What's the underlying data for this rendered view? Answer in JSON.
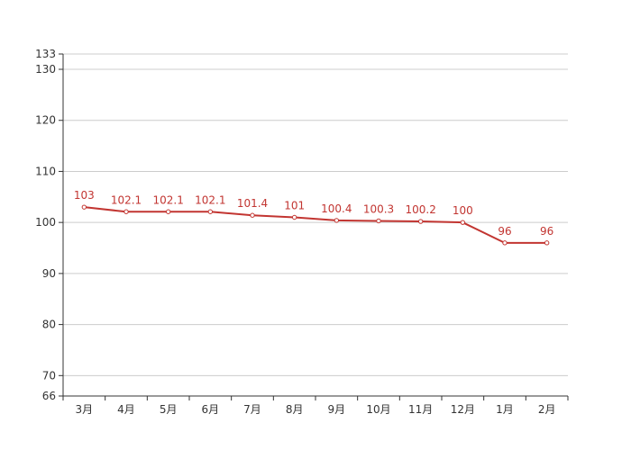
{
  "chart_data": {
    "type": "line",
    "title": "",
    "xlabel": "",
    "ylabel": "",
    "categories": [
      "3月",
      "4月",
      "5月",
      "6月",
      "7月",
      "8月",
      "9月",
      "10月",
      "11月",
      "12月",
      "1月",
      "2月"
    ],
    "series": [
      {
        "values": [
          103,
          102.1,
          102.1,
          102.1,
          101.4,
          101,
          100.4,
          100.3,
          100.2,
          100,
          96,
          96
        ],
        "labels": [
          "103",
          "102.1",
          "102.1",
          "102.1",
          "101.4",
          "101",
          "100.4",
          "100.3",
          "100.2",
          "100",
          "96",
          "96"
        ],
        "color": "#c23531"
      }
    ],
    "ylim": [
      66,
      133
    ],
    "yticks": [
      66,
      70,
      80,
      90,
      100,
      110,
      120,
      130,
      133
    ],
    "ytick_labels": [
      "66",
      "70",
      "80",
      "90",
      "100",
      "110",
      "120",
      "130",
      "133"
    ],
    "grid": true,
    "legend": "none"
  }
}
